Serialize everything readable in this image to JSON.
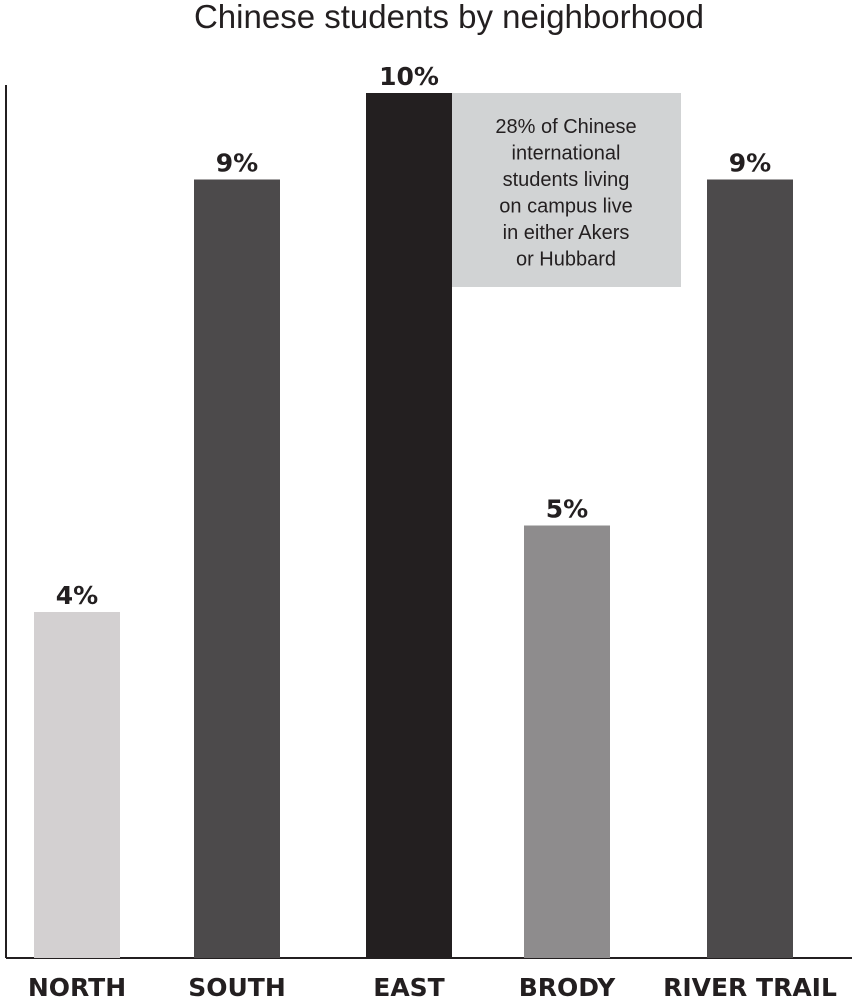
{
  "chart_data": {
    "type": "bar",
    "title": "Chinese students by neighborhood",
    "categories": [
      "NORTH",
      "SOUTH",
      "EAST",
      "BRODY",
      "RIVER TRAIL"
    ],
    "values": [
      4,
      9,
      10,
      5,
      9
    ],
    "value_labels": [
      "4%",
      "9%",
      "10%",
      "5%",
      "9%"
    ],
    "ylim": [
      0,
      10
    ],
    "grid": false,
    "bar_colors": [
      "#d3d0d1",
      "#4c4a4b",
      "#231f20",
      "#8e8c8d",
      "#4c4a4b"
    ],
    "annotation": {
      "lines": [
        "28% of Chinese",
        "international",
        "students living",
        "on campus live",
        "in either Akers",
        "or Hubbard"
      ],
      "background": "#d1d3d4",
      "anchor_category": "EAST"
    }
  }
}
